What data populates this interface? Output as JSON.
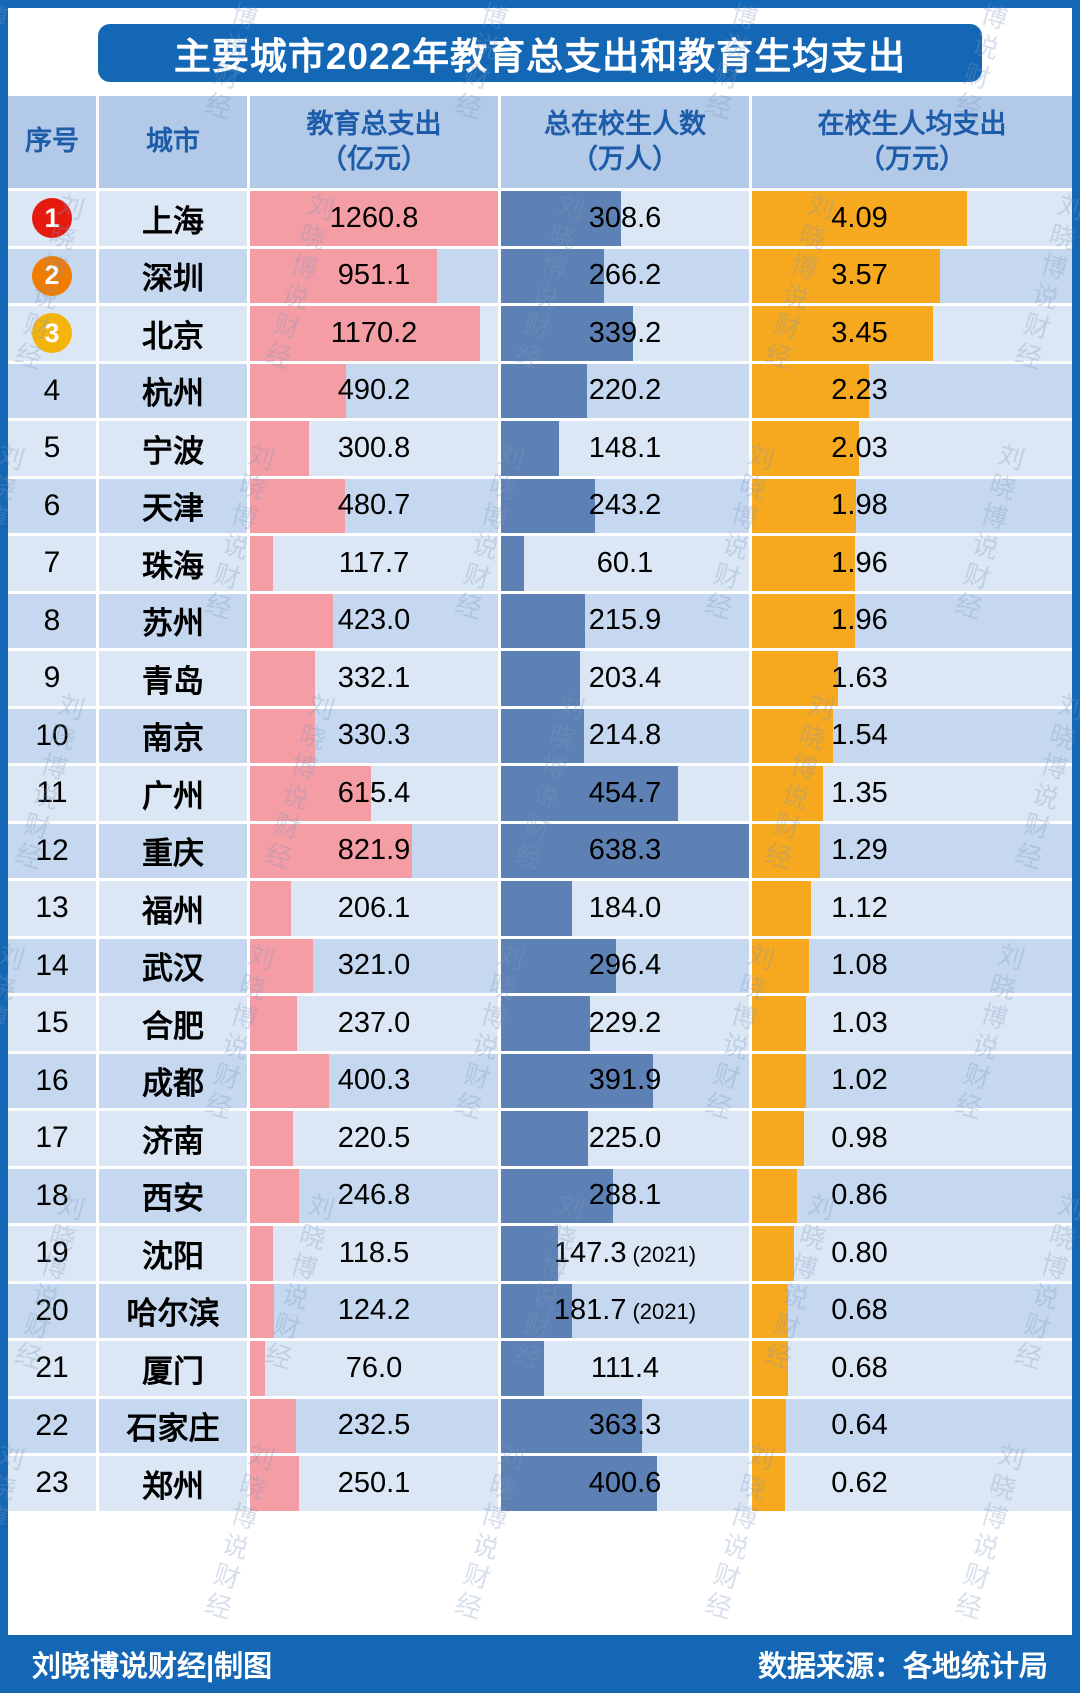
{
  "title": "主要城市2022年教育总支出和教育生均支出",
  "columns": [
    {
      "line1": "序号",
      "line2": ""
    },
    {
      "line1": "城市",
      "line2": ""
    },
    {
      "line1": "教育总支出",
      "line2": "（亿元）"
    },
    {
      "line1": "总在校生人数",
      "line2": "（万人）"
    },
    {
      "line1": "在校生人均支出",
      "line2": "（万元）"
    }
  ],
  "rows": [
    {
      "rank": "1",
      "city": "上海",
      "total": "1260.8",
      "students": "308.6",
      "percap": "4.09",
      "badge": "1"
    },
    {
      "rank": "2",
      "city": "深圳",
      "total": "951.1",
      "students": "266.2",
      "percap": "3.57",
      "badge": "2"
    },
    {
      "rank": "3",
      "city": "北京",
      "total": "1170.2",
      "students": "339.2",
      "percap": "3.45",
      "badge": "3"
    },
    {
      "rank": "4",
      "city": "杭州",
      "total": "490.2",
      "students": "220.2",
      "percap": "2.23"
    },
    {
      "rank": "5",
      "city": "宁波",
      "total": "300.8",
      "students": "148.1",
      "percap": "2.03"
    },
    {
      "rank": "6",
      "city": "天津",
      "total": "480.7",
      "students": "243.2",
      "percap": "1.98"
    },
    {
      "rank": "7",
      "city": "珠海",
      "total": "117.7",
      "students": "60.1",
      "percap": "1.96"
    },
    {
      "rank": "8",
      "city": "苏州",
      "total": "423.0",
      "students": "215.9",
      "percap": "1.96"
    },
    {
      "rank": "9",
      "city": "青岛",
      "total": "332.1",
      "students": "203.4",
      "percap": "1.63"
    },
    {
      "rank": "10",
      "city": "南京",
      "total": "330.3",
      "students": "214.8",
      "percap": "1.54"
    },
    {
      "rank": "11",
      "city": "广州",
      "total": "615.4",
      "students": "454.7",
      "percap": "1.35"
    },
    {
      "rank": "12",
      "city": "重庆",
      "total": "821.9",
      "students": "638.3",
      "percap": "1.29"
    },
    {
      "rank": "13",
      "city": "福州",
      "total": "206.1",
      "students": "184.0",
      "percap": "1.12"
    },
    {
      "rank": "14",
      "city": "武汉",
      "total": "321.0",
      "students": "296.4",
      "percap": "1.08"
    },
    {
      "rank": "15",
      "city": "合肥",
      "total": "237.0",
      "students": "229.2",
      "percap": "1.03"
    },
    {
      "rank": "16",
      "city": "成都",
      "total": "400.3",
      "students": "391.9",
      "percap": "1.02"
    },
    {
      "rank": "17",
      "city": "济南",
      "total": "220.5",
      "students": "225.0",
      "percap": "0.98"
    },
    {
      "rank": "18",
      "city": "西安",
      "total": "246.8",
      "students": "288.1",
      "percap": "0.86"
    },
    {
      "rank": "19",
      "city": "沈阳",
      "total": "118.5",
      "students": "147.3",
      "students_note": "(2021)",
      "percap": "0.80"
    },
    {
      "rank": "20",
      "city": "哈尔滨",
      "total": "124.2",
      "students": "181.7",
      "students_note": "(2021)",
      "percap": "0.68"
    },
    {
      "rank": "21",
      "city": "厦门",
      "total": "76.0",
      "students": "111.4",
      "percap": "0.68"
    },
    {
      "rank": "22",
      "city": "石家庄",
      "total": "232.5",
      "students": "363.3",
      "percap": "0.64"
    },
    {
      "rank": "23",
      "city": "郑州",
      "total": "250.1",
      "students": "400.6",
      "percap": "0.62"
    }
  ],
  "footer": {
    "left": "刘晓博说财经|制图",
    "right": "数据来源：各地统计局"
  },
  "watermark": "刘晓博说财经",
  "colors": {
    "frame_blue": "#1467b5",
    "header_bg": "#b3c9e8",
    "header_text": "#1d5ca8",
    "row_light": "#dbe7f5",
    "row_dark": "#c5d8ef",
    "bar_pink": "#f59da5",
    "bar_blue": "#5d81b5",
    "bar_orange": "#f6a81e",
    "badge_red": "#e71a0f",
    "badge_orange": "#f07c00",
    "badge_gold": "#f4b40d"
  },
  "chart_data": {
    "type": "bar",
    "title": "主要城市2022年教育总支出和教育生均支出",
    "orientation": "horizontal",
    "categories": [
      "上海",
      "深圳",
      "北京",
      "杭州",
      "宁波",
      "天津",
      "珠海",
      "苏州",
      "青岛",
      "南京",
      "广州",
      "重庆",
      "福州",
      "武汉",
      "合肥",
      "成都",
      "济南",
      "西安",
      "沈阳",
      "哈尔滨",
      "厦门",
      "石家庄",
      "郑州"
    ],
    "series": [
      {
        "name": "教育总支出（亿元）",
        "values": [
          1260.8,
          951.1,
          1170.2,
          490.2,
          300.8,
          480.7,
          117.7,
          423.0,
          332.1,
          330.3,
          615.4,
          821.9,
          206.1,
          321.0,
          237.0,
          400.3,
          220.5,
          246.8,
          118.5,
          124.2,
          76.0,
          232.5,
          250.1
        ]
      },
      {
        "name": "总在校生人数（万人）",
        "values": [
          308.6,
          266.2,
          339.2,
          220.2,
          148.1,
          243.2,
          60.1,
          215.9,
          203.4,
          214.8,
          454.7,
          638.3,
          184.0,
          296.4,
          229.2,
          391.9,
          225.0,
          288.1,
          147.3,
          181.7,
          111.4,
          363.3,
          400.6
        ]
      },
      {
        "name": "在校生人均支出（万元）",
        "values": [
          4.09,
          3.57,
          3.45,
          2.23,
          2.03,
          1.98,
          1.96,
          1.96,
          1.63,
          1.54,
          1.35,
          1.29,
          1.12,
          1.08,
          1.03,
          1.02,
          0.98,
          0.86,
          0.8,
          0.68,
          0.68,
          0.64,
          0.62
        ]
      }
    ],
    "notes": [
      {
        "city": "沈阳",
        "series": "总在校生人数（万人）",
        "note": "2021"
      },
      {
        "city": "哈尔滨",
        "series": "总在校生人数（万人）",
        "note": "2021"
      }
    ],
    "legend_position": "none",
    "grid": false,
    "sorted_by": "在校生人均支出（万元） desc"
  }
}
